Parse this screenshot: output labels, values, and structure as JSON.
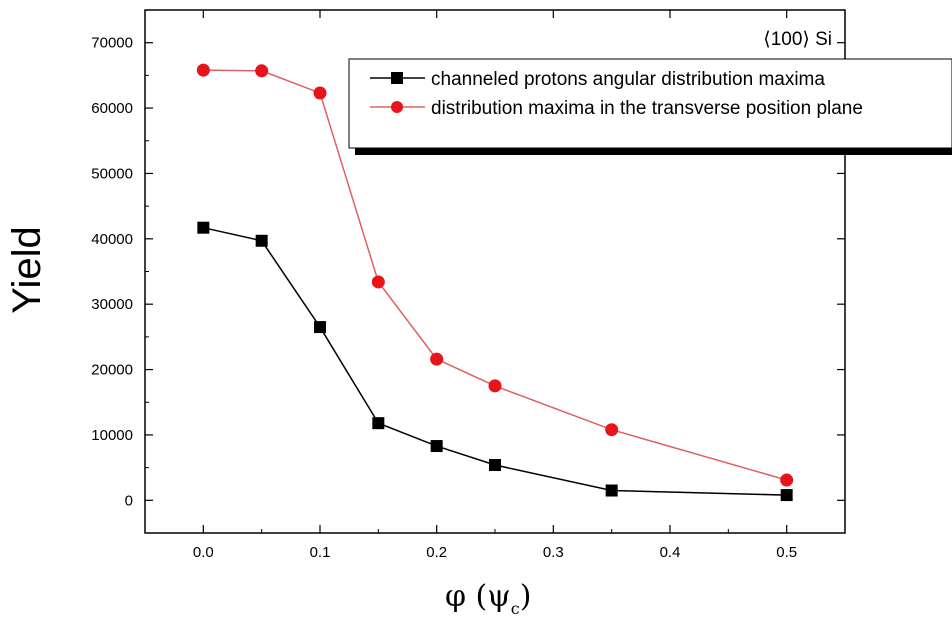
{
  "chart_data": {
    "type": "line",
    "xlabel": "φ (ψ",
    "xlabel_sub": "c",
    "xlabel_end": ")",
    "ylabel": "Yield",
    "annotation": "⟨100⟩ Si",
    "xlim": [
      -0.05,
      0.55
    ],
    "ylim": [
      -5000,
      75000
    ],
    "xticks": [
      0.0,
      0.1,
      0.2,
      0.3,
      0.4,
      0.5
    ],
    "xtick_labels": [
      "0.0",
      "0.1",
      "0.2",
      "0.3",
      "0.4",
      "0.5"
    ],
    "yticks": [
      0,
      10000,
      20000,
      30000,
      40000,
      50000,
      60000,
      70000
    ],
    "ytick_labels": [
      "0",
      "10000",
      "20000",
      "30000",
      "40000",
      "50000",
      "60000",
      "70000"
    ],
    "x": [
      0.0,
      0.05,
      0.1,
      0.15,
      0.2,
      0.25,
      0.35,
      0.5
    ],
    "legend_position": "top-right",
    "grid": false,
    "series": [
      {
        "name": "channeled protons angular distribution maxima",
        "color": "#000000",
        "marker": "square",
        "values": [
          41700,
          39700,
          26500,
          11800,
          8300,
          5400,
          1500,
          800
        ]
      },
      {
        "name": "distribution maxima in the transverse position plane",
        "color": "#e8141b",
        "line_color": "#e06060",
        "marker": "circle",
        "values": [
          65800,
          65700,
          62300,
          33400,
          21600,
          17500,
          10800,
          3100
        ]
      }
    ]
  }
}
